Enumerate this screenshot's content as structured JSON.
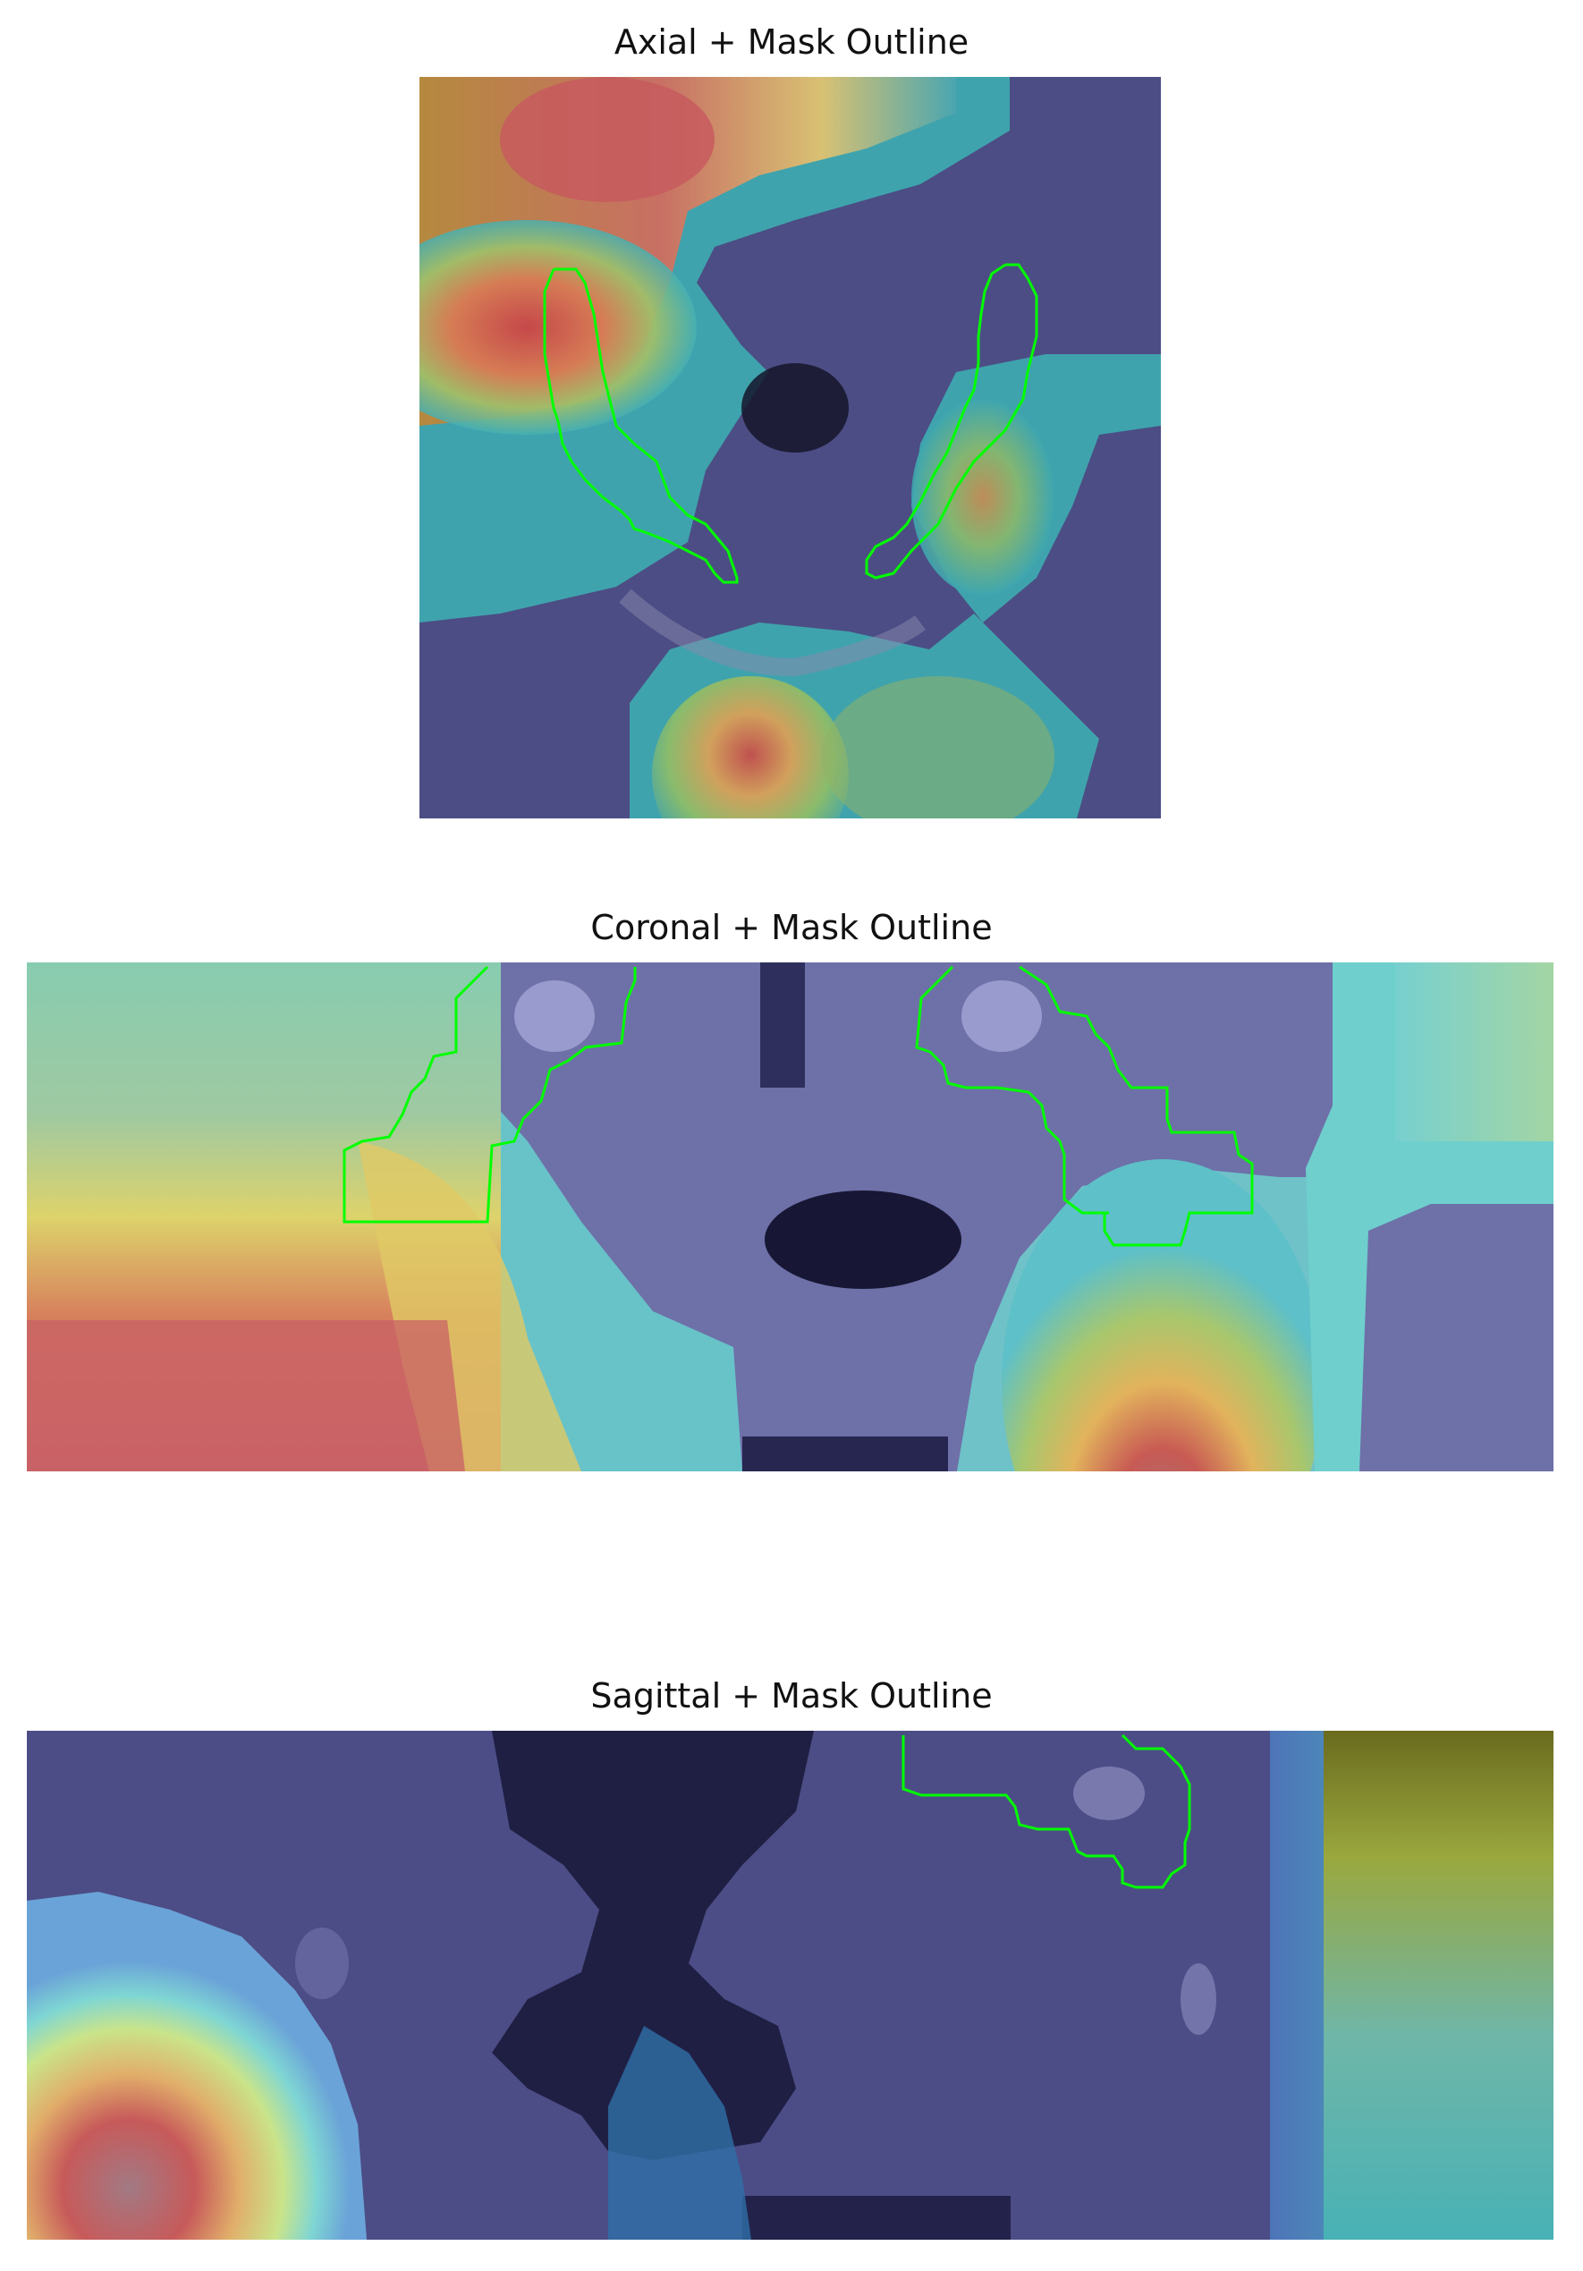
{
  "panels": [
    {
      "title": "Axial + Mask Outline",
      "view": "axial"
    },
    {
      "title": "Coronal + Mask Outline",
      "view": "coronal"
    },
    {
      "title": "Sagittal + Mask Outline",
      "view": "sagittal"
    }
  ],
  "colors": {
    "mask_outline": "#00ff00",
    "background_tissue": "#4b4c86",
    "heat_low": "#2a9fb0",
    "heat_mid": "#e8e06a",
    "heat_high": "#c9504f"
  }
}
